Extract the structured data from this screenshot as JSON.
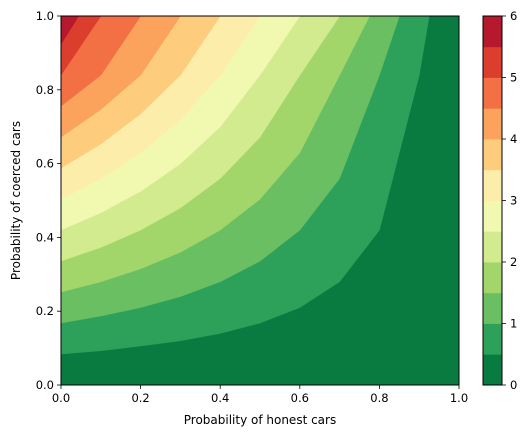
{
  "chart_data": {
    "type": "heatmap",
    "subtype": "filled-contour",
    "xlabel": "Probability of honest cars",
    "ylabel": "Probability of coerced cars",
    "xlim": [
      0,
      1
    ],
    "ylim": [
      0,
      1
    ],
    "x_ticks": [
      "0.0",
      "0.2",
      "0.4",
      "0.6",
      "0.8",
      "1.0"
    ],
    "y_ticks": [
      "0.0",
      "0.2",
      "0.4",
      "0.6",
      "0.8",
      "1.0"
    ],
    "grid": false,
    "colorbar": {
      "range": [
        0,
        6
      ],
      "ticks": [
        "0",
        "1",
        "2",
        "3",
        "4",
        "5",
        "6"
      ],
      "levels": [
        0,
        0.5,
        1,
        1.5,
        2,
        2.5,
        3,
        3.5,
        4,
        4.5,
        5,
        5.5,
        6
      ],
      "colormap": "RdYlGn_r",
      "colors": [
        "#0a7b40",
        "#2da15a",
        "#6bbf63",
        "#a3d66a",
        "#d1eb8e",
        "#f1f8b0",
        "#fdedaa",
        "#fdcd7d",
        "#fba25d",
        "#f36f44",
        "#dc3e2e",
        "#b6192e"
      ]
    },
    "contour_boundaries": [
      {
        "level": 0.5,
        "points": [
          [
            0,
            0.084
          ],
          [
            0.1,
            0.093
          ],
          [
            0.2,
            0.106
          ],
          [
            0.3,
            0.12
          ],
          [
            0.4,
            0.14
          ],
          [
            0.5,
            0.168
          ],
          [
            0.6,
            0.21
          ],
          [
            0.7,
            0.28
          ],
          [
            0.8,
            0.42
          ],
          [
            0.9,
            0.84
          ],
          [
            0.925,
            1.0
          ]
        ]
      },
      {
        "level": 1.0,
        "points": [
          [
            0,
            0.168
          ],
          [
            0.1,
            0.187
          ],
          [
            0.2,
            0.21
          ],
          [
            0.3,
            0.24
          ],
          [
            0.4,
            0.28
          ],
          [
            0.5,
            0.336
          ],
          [
            0.6,
            0.42
          ],
          [
            0.7,
            0.56
          ],
          [
            0.8,
            0.84
          ],
          [
            0.85,
            1.0
          ]
        ]
      },
      {
        "level": 1.5,
        "points": [
          [
            0,
            0.252
          ],
          [
            0.1,
            0.28
          ],
          [
            0.2,
            0.315
          ],
          [
            0.3,
            0.36
          ],
          [
            0.4,
            0.42
          ],
          [
            0.5,
            0.504
          ],
          [
            0.6,
            0.63
          ],
          [
            0.7,
            0.84
          ],
          [
            0.775,
            1.0
          ]
        ]
      },
      {
        "level": 2.0,
        "points": [
          [
            0,
            0.336
          ],
          [
            0.1,
            0.373
          ],
          [
            0.2,
            0.42
          ],
          [
            0.3,
            0.48
          ],
          [
            0.4,
            0.56
          ],
          [
            0.5,
            0.672
          ],
          [
            0.6,
            0.84
          ],
          [
            0.7,
            1.0
          ]
        ]
      },
      {
        "level": 2.5,
        "points": [
          [
            0,
            0.42
          ],
          [
            0.1,
            0.467
          ],
          [
            0.2,
            0.525
          ],
          [
            0.3,
            0.6
          ],
          [
            0.4,
            0.7
          ],
          [
            0.5,
            0.84
          ],
          [
            0.6,
            1.0
          ]
        ]
      },
      {
        "level": 3.0,
        "points": [
          [
            0,
            0.504
          ],
          [
            0.1,
            0.56
          ],
          [
            0.2,
            0.63
          ],
          [
            0.3,
            0.72
          ],
          [
            0.4,
            0.84
          ],
          [
            0.5,
            1.0
          ]
        ]
      },
      {
        "level": 3.5,
        "points": [
          [
            0,
            0.588
          ],
          [
            0.1,
            0.653
          ],
          [
            0.2,
            0.735
          ],
          [
            0.3,
            0.84
          ],
          [
            0.4,
            1.0
          ]
        ]
      },
      {
        "level": 4.0,
        "points": [
          [
            0,
            0.672
          ],
          [
            0.1,
            0.747
          ],
          [
            0.2,
            0.84
          ],
          [
            0.3,
            1.0
          ]
        ]
      },
      {
        "level": 4.5,
        "points": [
          [
            0,
            0.756
          ],
          [
            0.1,
            0.84
          ],
          [
            0.2,
            1.0
          ]
        ]
      },
      {
        "level": 5.0,
        "points": [
          [
            0,
            0.84
          ],
          [
            0.1,
            1.0
          ]
        ]
      },
      {
        "level": 5.5,
        "points": [
          [
            0,
            0.924
          ],
          [
            0.0444,
            1.0
          ]
        ]
      }
    ]
  }
}
